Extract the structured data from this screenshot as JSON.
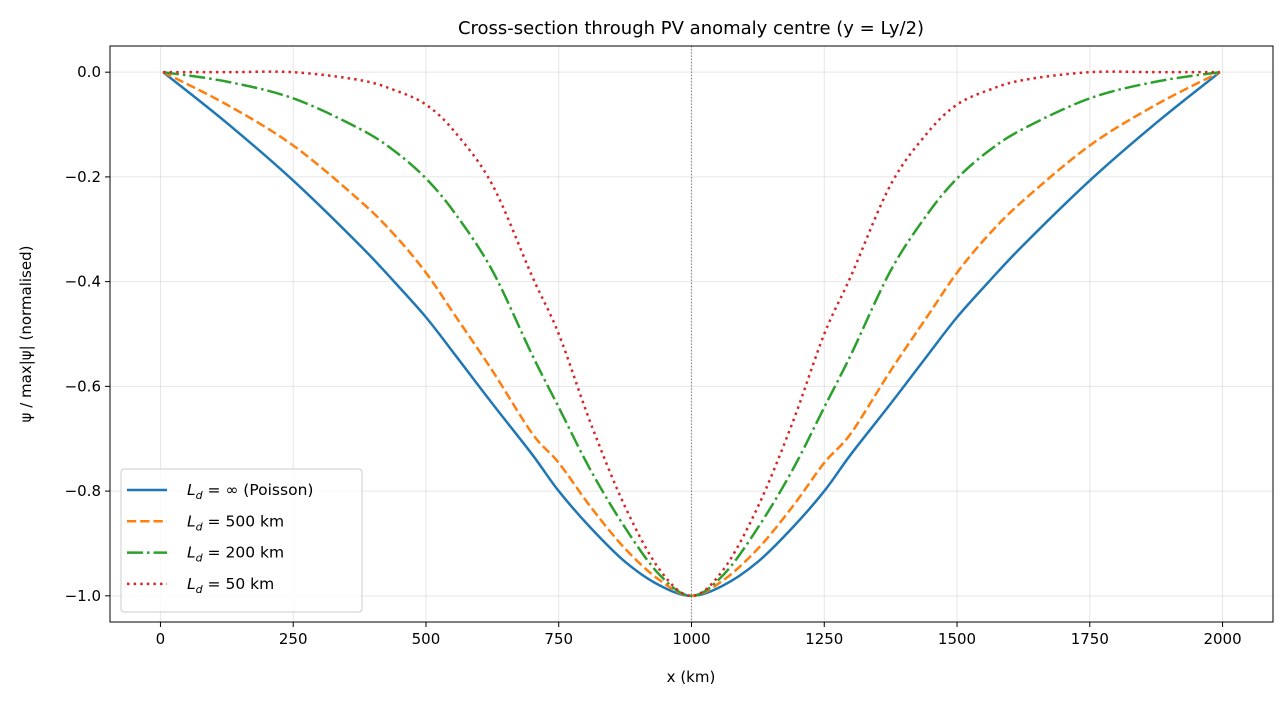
{
  "chart_data": {
    "type": "line",
    "title": "Cross-section through PV anomaly centre (y = Ly/2)",
    "xlabel": "x (km)",
    "ylabel": "ψ / max|ψ| (normalised)",
    "xlim": [
      -95,
      2095
    ],
    "ylim": [
      -1.05,
      0.05
    ],
    "xticks": [
      0,
      250,
      500,
      750,
      1000,
      1250,
      1500,
      1750,
      2000
    ],
    "xtick_labels": [
      "0",
      "250",
      "500",
      "750",
      "1000",
      "1250",
      "1500",
      "1750",
      "2000"
    ],
    "yticks": [
      0.0,
      -0.2,
      -0.4,
      -0.6,
      -0.8,
      -1.0
    ],
    "ytick_labels": [
      "0.0",
      "−0.2",
      "−0.4",
      "−0.6",
      "−0.8",
      "−1.0"
    ],
    "grid": true,
    "legend_position": "lower-left",
    "vline": {
      "x": 1000,
      "style": "dotted",
      "color": "#808080"
    },
    "x": [
      5,
      125,
      250,
      375,
      440,
      500,
      555,
      625,
      700,
      750,
      810,
      875,
      940,
      1000,
      1060,
      1125,
      1190,
      1250,
      1300,
      1375,
      1445,
      1500,
      1560,
      1625,
      1750,
      1875,
      1995
    ],
    "series": [
      {
        "name": "L_d = ∞ (Poisson)",
        "color": "#1f77b4",
        "style": "solid",
        "values": [
          0,
          -0.097,
          -0.207,
          -0.33,
          -0.4,
          -0.468,
          -0.54,
          -0.633,
          -0.73,
          -0.8,
          -0.87,
          -0.935,
          -0.98,
          -1.0,
          -0.98,
          -0.935,
          -0.87,
          -0.8,
          -0.73,
          -0.633,
          -0.54,
          -0.468,
          -0.4,
          -0.33,
          -0.207,
          -0.097,
          0
        ]
      },
      {
        "name": "L_d = 500 km",
        "color": "#ff7f0e",
        "style": "dashed",
        "values": [
          0,
          -0.062,
          -0.14,
          -0.245,
          -0.31,
          -0.383,
          -0.465,
          -0.57,
          -0.69,
          -0.746,
          -0.83,
          -0.91,
          -0.97,
          -1.0,
          -0.97,
          -0.91,
          -0.83,
          -0.746,
          -0.69,
          -0.57,
          -0.465,
          -0.383,
          -0.31,
          -0.245,
          -0.14,
          -0.062,
          0
        ]
      },
      {
        "name": "L_d = 200 km",
        "color": "#2ca02c",
        "style": "dashdot",
        "values": [
          0,
          -0.018,
          -0.05,
          -0.108,
          -0.15,
          -0.203,
          -0.27,
          -0.379,
          -0.54,
          -0.64,
          -0.76,
          -0.87,
          -0.96,
          -1.0,
          -0.96,
          -0.87,
          -0.76,
          -0.64,
          -0.54,
          -0.379,
          -0.27,
          -0.203,
          -0.15,
          -0.108,
          -0.05,
          -0.018,
          0
        ]
      },
      {
        "name": "L_d = 50 km",
        "color": "#d62728",
        "style": "dotted",
        "values": [
          0,
          0,
          0,
          -0.015,
          -0.034,
          -0.062,
          -0.115,
          -0.215,
          -0.39,
          -0.5,
          -0.67,
          -0.83,
          -0.95,
          -1.0,
          -0.95,
          -0.83,
          -0.67,
          -0.5,
          -0.39,
          -0.215,
          -0.115,
          -0.062,
          -0.034,
          -0.015,
          0,
          0,
          0
        ]
      }
    ]
  }
}
